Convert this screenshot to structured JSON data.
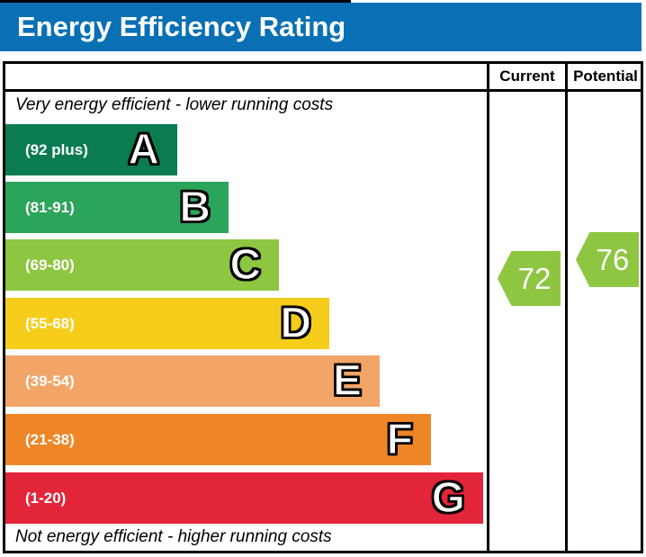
{
  "header": {
    "title": "Energy Efficiency Rating"
  },
  "table": {
    "current_label": "Current",
    "potential_label": "Potential",
    "top_caption": "Very energy efficient - lower running costs",
    "bottom_caption": "Not energy efficient - higher running costs"
  },
  "chart_data": {
    "type": "bar",
    "title": "Energy Efficiency Rating",
    "bands": [
      {
        "letter": "A",
        "range_label": "(92 plus)",
        "min": 92,
        "max": 100,
        "color": "#0b7b52"
      },
      {
        "letter": "B",
        "range_label": "(81-91)",
        "min": 81,
        "max": 91,
        "color": "#2ba45c"
      },
      {
        "letter": "C",
        "range_label": "(69-80)",
        "min": 69,
        "max": 80,
        "color": "#8ec641"
      },
      {
        "letter": "D",
        "range_label": "(55-68)",
        "min": 55,
        "max": 68,
        "color": "#f5cd1a"
      },
      {
        "letter": "E",
        "range_label": "(39-54)",
        "min": 39,
        "max": 54,
        "color": "#f2a567"
      },
      {
        "letter": "F",
        "range_label": "(21-38)",
        "min": 21,
        "max": 38,
        "color": "#ee8527"
      },
      {
        "letter": "G",
        "range_label": "(1-20)",
        "min": 1,
        "max": 20,
        "color": "#e32539"
      }
    ],
    "current": {
      "value": 72,
      "arrow_color": "#8ec641",
      "band": "C"
    },
    "potential": {
      "value": 76,
      "arrow_color": "#8ec641",
      "band": "C"
    }
  },
  "colors": {
    "banner_bg": "#0a70b5",
    "banner_text": "#ffffff",
    "border": "#000000",
    "band_text": "#ffffff"
  }
}
